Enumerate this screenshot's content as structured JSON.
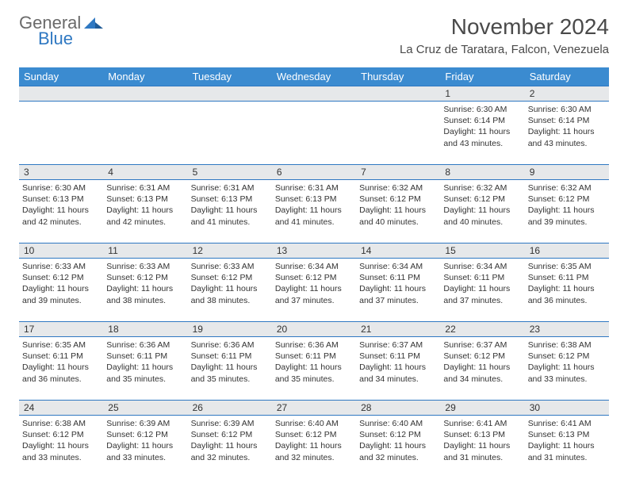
{
  "logo": {
    "line1": "General",
    "line2": "Blue"
  },
  "colors": {
    "header_bg": "#3b8bd0",
    "header_text": "#ffffff",
    "daynum_bg": "#e6e8ea",
    "border": "#2f78c2",
    "logo_blue": "#2f78c2",
    "logo_gray": "#6a6a6a",
    "text": "#333333"
  },
  "title": "November 2024",
  "location": "La Cruz de Taratara, Falcon, Venezuela",
  "day_headers": [
    "Sunday",
    "Monday",
    "Tuesday",
    "Wednesday",
    "Thursday",
    "Friday",
    "Saturday"
  ],
  "weeks": [
    [
      null,
      null,
      null,
      null,
      null,
      {
        "n": "1",
        "sr": "Sunrise: 6:30 AM",
        "ss": "Sunset: 6:14 PM",
        "dl1": "Daylight: 11 hours",
        "dl2": "and 43 minutes."
      },
      {
        "n": "2",
        "sr": "Sunrise: 6:30 AM",
        "ss": "Sunset: 6:14 PM",
        "dl1": "Daylight: 11 hours",
        "dl2": "and 43 minutes."
      }
    ],
    [
      {
        "n": "3",
        "sr": "Sunrise: 6:30 AM",
        "ss": "Sunset: 6:13 PM",
        "dl1": "Daylight: 11 hours",
        "dl2": "and 42 minutes."
      },
      {
        "n": "4",
        "sr": "Sunrise: 6:31 AM",
        "ss": "Sunset: 6:13 PM",
        "dl1": "Daylight: 11 hours",
        "dl2": "and 42 minutes."
      },
      {
        "n": "5",
        "sr": "Sunrise: 6:31 AM",
        "ss": "Sunset: 6:13 PM",
        "dl1": "Daylight: 11 hours",
        "dl2": "and 41 minutes."
      },
      {
        "n": "6",
        "sr": "Sunrise: 6:31 AM",
        "ss": "Sunset: 6:13 PM",
        "dl1": "Daylight: 11 hours",
        "dl2": "and 41 minutes."
      },
      {
        "n": "7",
        "sr": "Sunrise: 6:32 AM",
        "ss": "Sunset: 6:12 PM",
        "dl1": "Daylight: 11 hours",
        "dl2": "and 40 minutes."
      },
      {
        "n": "8",
        "sr": "Sunrise: 6:32 AM",
        "ss": "Sunset: 6:12 PM",
        "dl1": "Daylight: 11 hours",
        "dl2": "and 40 minutes."
      },
      {
        "n": "9",
        "sr": "Sunrise: 6:32 AM",
        "ss": "Sunset: 6:12 PM",
        "dl1": "Daylight: 11 hours",
        "dl2": "and 39 minutes."
      }
    ],
    [
      {
        "n": "10",
        "sr": "Sunrise: 6:33 AM",
        "ss": "Sunset: 6:12 PM",
        "dl1": "Daylight: 11 hours",
        "dl2": "and 39 minutes."
      },
      {
        "n": "11",
        "sr": "Sunrise: 6:33 AM",
        "ss": "Sunset: 6:12 PM",
        "dl1": "Daylight: 11 hours",
        "dl2": "and 38 minutes."
      },
      {
        "n": "12",
        "sr": "Sunrise: 6:33 AM",
        "ss": "Sunset: 6:12 PM",
        "dl1": "Daylight: 11 hours",
        "dl2": "and 38 minutes."
      },
      {
        "n": "13",
        "sr": "Sunrise: 6:34 AM",
        "ss": "Sunset: 6:12 PM",
        "dl1": "Daylight: 11 hours",
        "dl2": "and 37 minutes."
      },
      {
        "n": "14",
        "sr": "Sunrise: 6:34 AM",
        "ss": "Sunset: 6:11 PM",
        "dl1": "Daylight: 11 hours",
        "dl2": "and 37 minutes."
      },
      {
        "n": "15",
        "sr": "Sunrise: 6:34 AM",
        "ss": "Sunset: 6:11 PM",
        "dl1": "Daylight: 11 hours",
        "dl2": "and 37 minutes."
      },
      {
        "n": "16",
        "sr": "Sunrise: 6:35 AM",
        "ss": "Sunset: 6:11 PM",
        "dl1": "Daylight: 11 hours",
        "dl2": "and 36 minutes."
      }
    ],
    [
      {
        "n": "17",
        "sr": "Sunrise: 6:35 AM",
        "ss": "Sunset: 6:11 PM",
        "dl1": "Daylight: 11 hours",
        "dl2": "and 36 minutes."
      },
      {
        "n": "18",
        "sr": "Sunrise: 6:36 AM",
        "ss": "Sunset: 6:11 PM",
        "dl1": "Daylight: 11 hours",
        "dl2": "and 35 minutes."
      },
      {
        "n": "19",
        "sr": "Sunrise: 6:36 AM",
        "ss": "Sunset: 6:11 PM",
        "dl1": "Daylight: 11 hours",
        "dl2": "and 35 minutes."
      },
      {
        "n": "20",
        "sr": "Sunrise: 6:36 AM",
        "ss": "Sunset: 6:11 PM",
        "dl1": "Daylight: 11 hours",
        "dl2": "and 35 minutes."
      },
      {
        "n": "21",
        "sr": "Sunrise: 6:37 AM",
        "ss": "Sunset: 6:11 PM",
        "dl1": "Daylight: 11 hours",
        "dl2": "and 34 minutes."
      },
      {
        "n": "22",
        "sr": "Sunrise: 6:37 AM",
        "ss": "Sunset: 6:12 PM",
        "dl1": "Daylight: 11 hours",
        "dl2": "and 34 minutes."
      },
      {
        "n": "23",
        "sr": "Sunrise: 6:38 AM",
        "ss": "Sunset: 6:12 PM",
        "dl1": "Daylight: 11 hours",
        "dl2": "and 33 minutes."
      }
    ],
    [
      {
        "n": "24",
        "sr": "Sunrise: 6:38 AM",
        "ss": "Sunset: 6:12 PM",
        "dl1": "Daylight: 11 hours",
        "dl2": "and 33 minutes."
      },
      {
        "n": "25",
        "sr": "Sunrise: 6:39 AM",
        "ss": "Sunset: 6:12 PM",
        "dl1": "Daylight: 11 hours",
        "dl2": "and 33 minutes."
      },
      {
        "n": "26",
        "sr": "Sunrise: 6:39 AM",
        "ss": "Sunset: 6:12 PM",
        "dl1": "Daylight: 11 hours",
        "dl2": "and 32 minutes."
      },
      {
        "n": "27",
        "sr": "Sunrise: 6:40 AM",
        "ss": "Sunset: 6:12 PM",
        "dl1": "Daylight: 11 hours",
        "dl2": "and 32 minutes."
      },
      {
        "n": "28",
        "sr": "Sunrise: 6:40 AM",
        "ss": "Sunset: 6:12 PM",
        "dl1": "Daylight: 11 hours",
        "dl2": "and 32 minutes."
      },
      {
        "n": "29",
        "sr": "Sunrise: 6:41 AM",
        "ss": "Sunset: 6:13 PM",
        "dl1": "Daylight: 11 hours",
        "dl2": "and 31 minutes."
      },
      {
        "n": "30",
        "sr": "Sunrise: 6:41 AM",
        "ss": "Sunset: 6:13 PM",
        "dl1": "Daylight: 11 hours",
        "dl2": "and 31 minutes."
      }
    ]
  ]
}
